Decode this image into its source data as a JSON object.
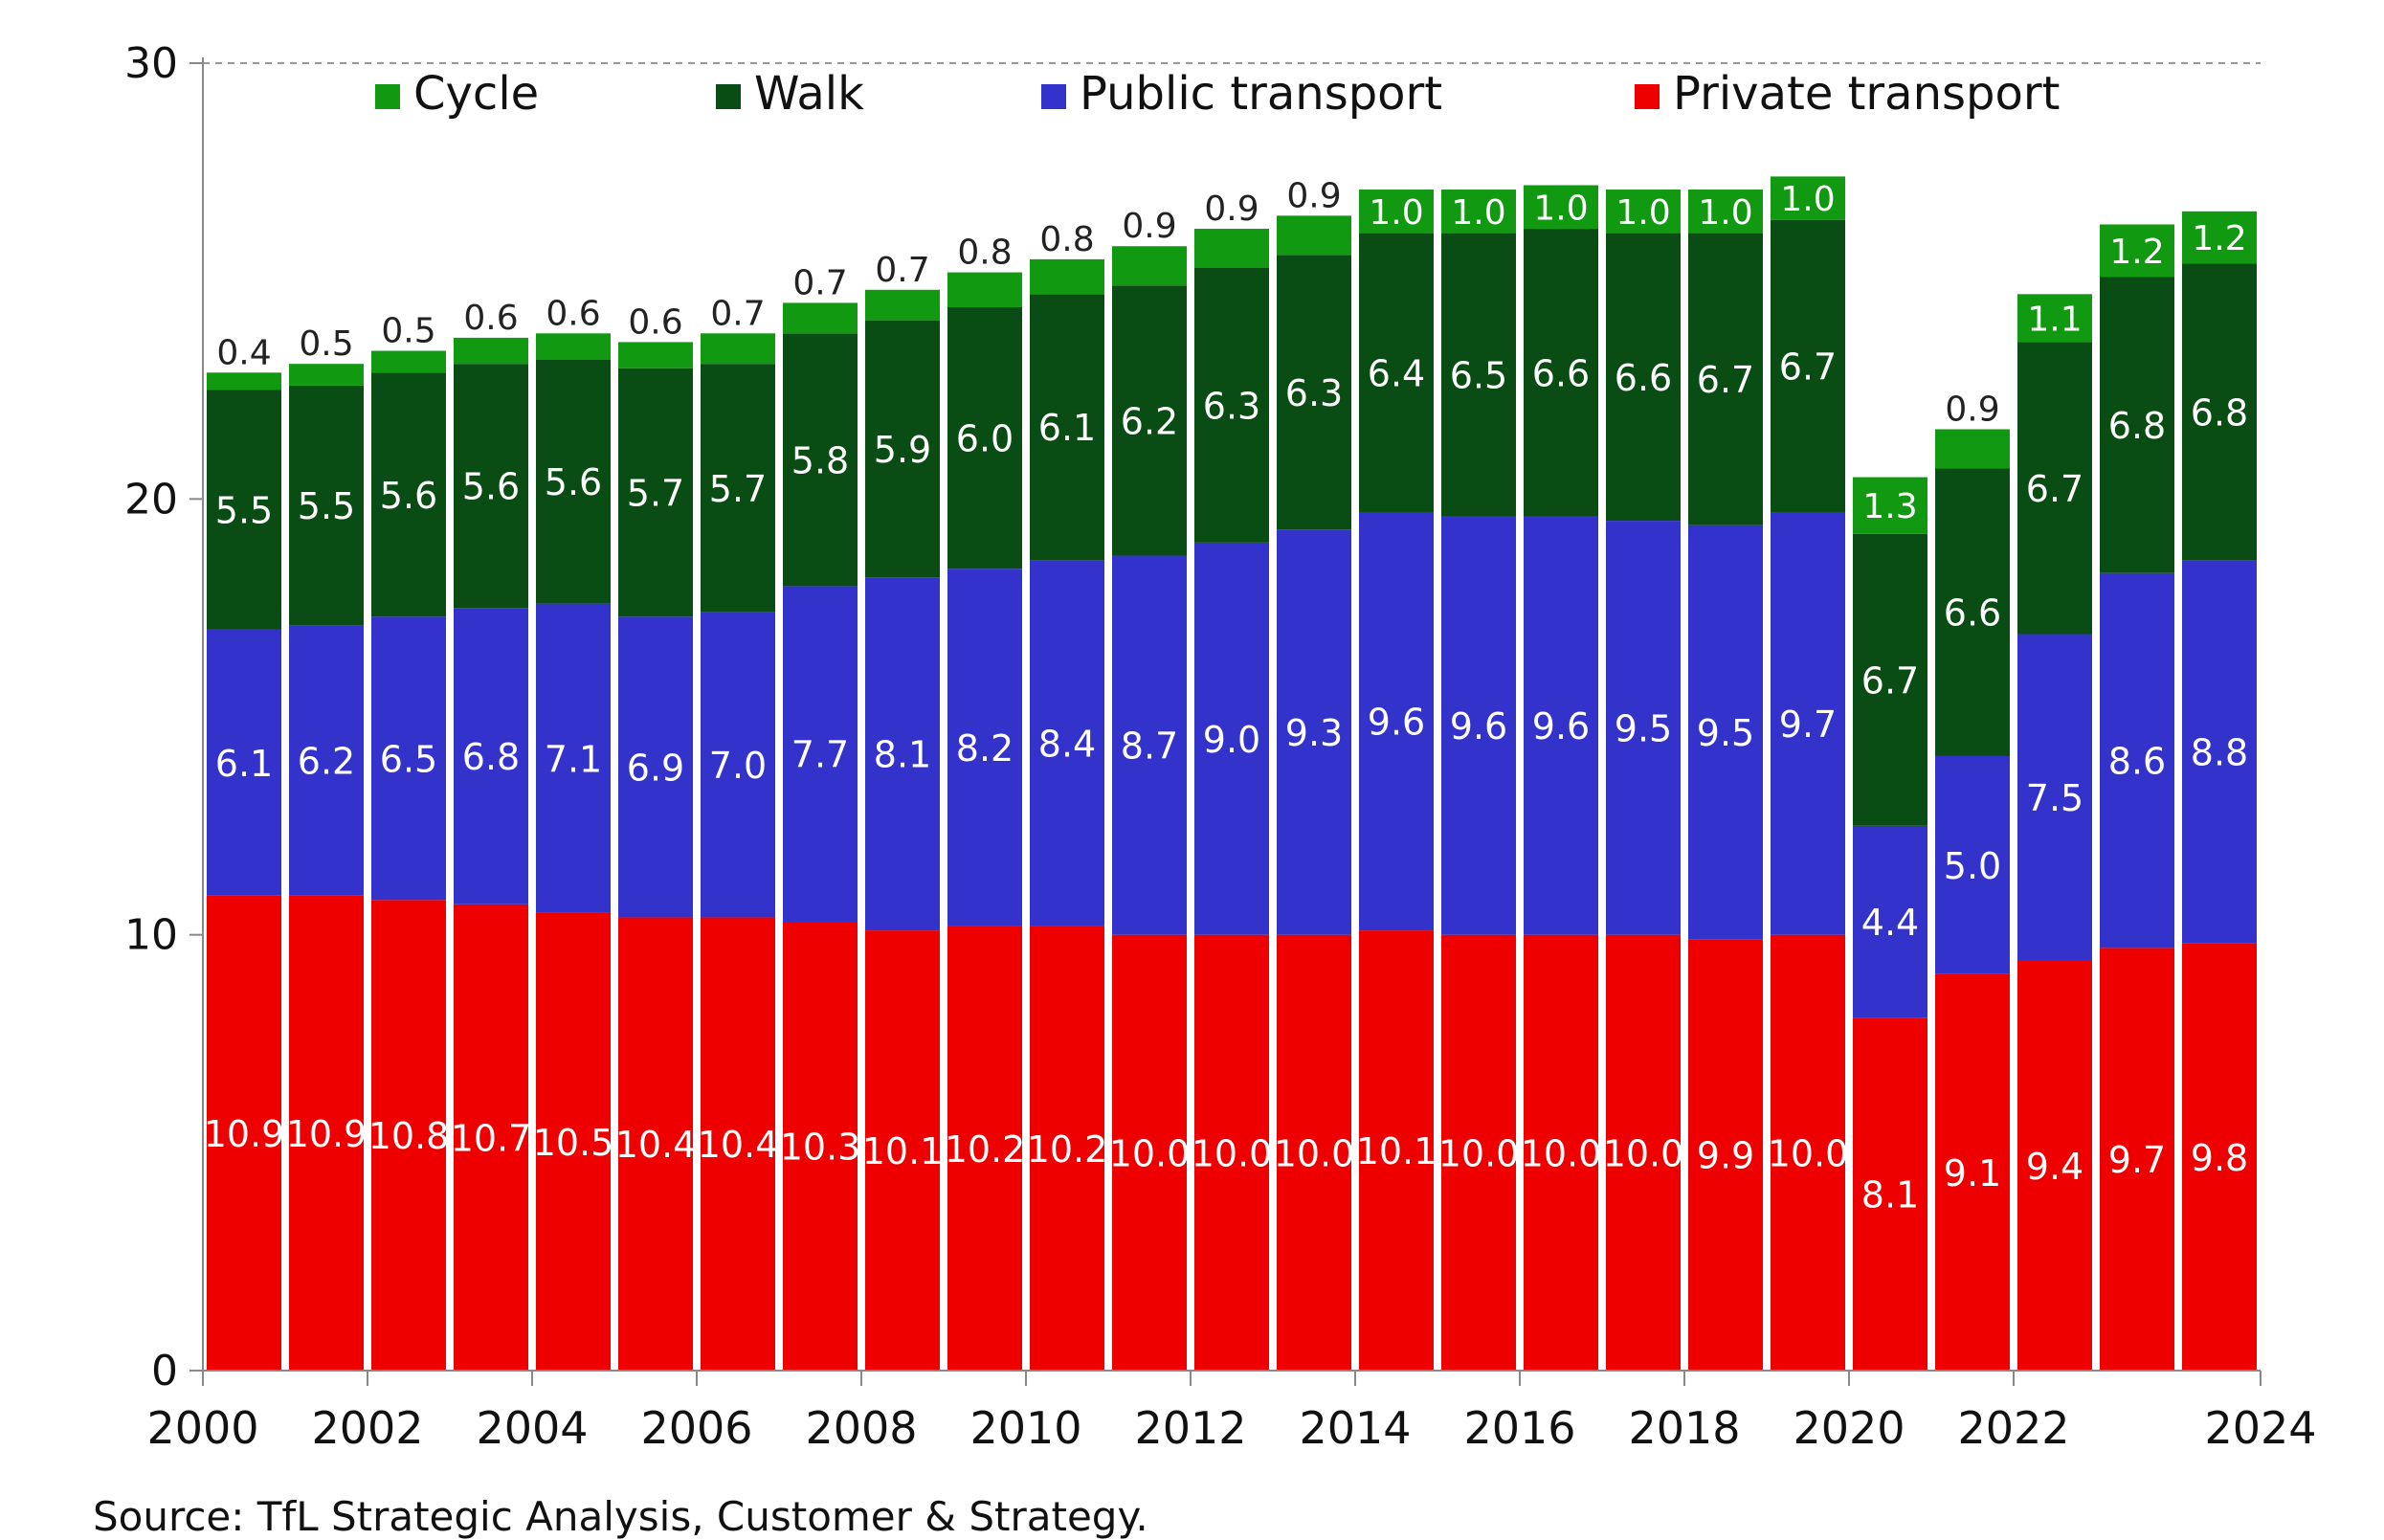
{
  "chart_data": {
    "type": "bar",
    "stacked": true,
    "x": [
      2000,
      2001,
      2002,
      2003,
      2004,
      2005,
      2006,
      2007,
      2008,
      2009,
      2010,
      2011,
      2012,
      2013,
      2014,
      2015,
      2016,
      2017,
      2018,
      2019,
      2020,
      2021,
      2022,
      2023,
      2024
    ],
    "x_tick_labels": [
      "2000",
      "2002",
      "2004",
      "2006",
      "2008",
      "2010",
      "2012",
      "2014",
      "2016",
      "2018",
      "2020",
      "2022",
      "2024"
    ],
    "y_ticks": [
      "0",
      "10",
      "20",
      "30"
    ],
    "ylim": [
      0,
      30
    ],
    "legend_position": "top",
    "series": [
      {
        "name": "Private transport",
        "color": "#ee0000",
        "values": [
          10.9,
          10.9,
          10.8,
          10.7,
          10.5,
          10.4,
          10.4,
          10.3,
          10.1,
          10.2,
          10.2,
          10.0,
          10.0,
          10.0,
          10.1,
          10.0,
          10.0,
          10.0,
          9.9,
          10.0,
          8.1,
          9.1,
          9.4,
          9.7,
          9.8
        ],
        "labels": [
          "10.9",
          "10.9",
          "10.8",
          "10.7",
          "10.5",
          "10.4",
          "10.4",
          "10.3",
          "10.1",
          "10.2",
          "10.2",
          "10.0",
          "10.0",
          "10.0",
          "10.1",
          "10.0",
          "10.0",
          "10.0",
          "9.9",
          "10.0",
          "8.1",
          "9.1",
          "9.4",
          "9.7",
          "9.8"
        ]
      },
      {
        "name": "Public transport",
        "color": "#3333cc",
        "values": [
          6.1,
          6.2,
          6.5,
          6.8,
          7.1,
          6.9,
          7.0,
          7.7,
          8.1,
          8.2,
          8.4,
          8.7,
          9.0,
          9.3,
          9.6,
          9.6,
          9.6,
          9.5,
          9.5,
          9.7,
          4.4,
          5.0,
          7.5,
          8.6,
          8.8
        ],
        "labels": [
          "6.1",
          "6.2",
          "6.5",
          "6.8",
          "7.1",
          "6.9",
          "7.0",
          "7.7",
          "8.1",
          "8.2",
          "8.4",
          "8.7",
          "9.0",
          "9.3",
          "9.6",
          "9.6",
          "9.6",
          "9.5",
          "9.5",
          "9.7",
          "4.4",
          "5.0",
          "7.5",
          "8.6",
          "8.8"
        ]
      },
      {
        "name": "Walk",
        "color": "#0a4d14",
        "values": [
          5.5,
          5.5,
          5.6,
          5.6,
          5.6,
          5.7,
          5.7,
          5.8,
          5.9,
          6.0,
          6.1,
          6.2,
          6.3,
          6.3,
          6.4,
          6.5,
          6.6,
          6.6,
          6.7,
          6.7,
          6.7,
          6.6,
          6.7,
          6.8,
          6.8
        ],
        "labels": [
          "5.5",
          "5.5",
          "5.6",
          "5.6",
          "5.6",
          "5.7",
          "5.7",
          "5.8",
          "5.9",
          "6.0",
          "6.1",
          "6.2",
          "6.3",
          "6.3",
          "6.4",
          "6.5",
          "6.6",
          "6.6",
          "6.7",
          "6.7",
          "6.7",
          "6.6",
          "6.7",
          "6.8",
          "6.8"
        ]
      },
      {
        "name": "Cycle",
        "color": "#129912",
        "values": [
          0.4,
          0.5,
          0.5,
          0.6,
          0.6,
          0.6,
          0.7,
          0.7,
          0.7,
          0.8,
          0.8,
          0.9,
          0.9,
          0.9,
          1.0,
          1.0,
          1.0,
          1.0,
          1.0,
          1.0,
          1.3,
          0.9,
          1.1,
          1.2,
          1.2
        ],
        "labels": [
          "0.4",
          "0.5",
          "0.5",
          "0.6",
          "0.6",
          "0.6",
          "0.7",
          "0.7",
          "0.7",
          "0.8",
          "0.8",
          "0.9",
          "0.9",
          "0.9",
          "1.0",
          "1.0",
          "1.0",
          "1.0",
          "1.0",
          "1.0",
          "1.3",
          "0.9",
          "1.1",
          "1.2",
          "1.2"
        ]
      }
    ],
    "legend_order": [
      "Cycle",
      "Walk",
      "Public transport",
      "Private transport"
    ]
  },
  "source_note": "Source: TfL Strategic Analysis, Customer & Strategy."
}
